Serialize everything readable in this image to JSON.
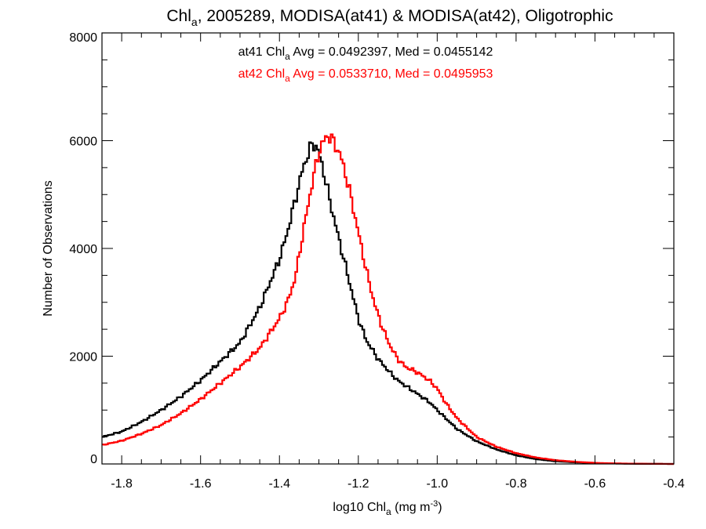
{
  "chart_data": {
    "type": "line",
    "title": {
      "pre": "Chl",
      "sub": "a",
      "post": ", 2005289, MODISA(at41) & MODISA(at42), Oligotrophic"
    },
    "xlabel": {
      "pre": "log10 Chl",
      "sub": "a",
      "mid": " (mg m",
      "sup": "-3",
      "post": ")"
    },
    "ylabel": "Number of Observations",
    "xlim": [
      -1.85,
      -0.4
    ],
    "ylim": [
      0,
      8000
    ],
    "x_ticks": [
      {
        "value": -1.8,
        "label": "-1.8"
      },
      {
        "value": -1.6,
        "label": "-1.6"
      },
      {
        "value": -1.4,
        "label": "-1.4"
      },
      {
        "value": -1.2,
        "label": "-1.2"
      },
      {
        "value": -1.0,
        "label": "-1.0"
      },
      {
        "value": -0.8,
        "label": "-0.8"
      },
      {
        "value": -0.6,
        "label": "-0.6"
      },
      {
        "value": -0.4,
        "label": "-0.4"
      }
    ],
    "y_ticks": [
      {
        "value": 0,
        "label": "0"
      },
      {
        "value": 2000,
        "label": "2000"
      },
      {
        "value": 4000,
        "label": "4000"
      },
      {
        "value": 6000,
        "label": "6000"
      },
      {
        "value": 8000,
        "label": "8000"
      }
    ],
    "grid": false,
    "step": 0.005,
    "annotations": [
      {
        "color": "#000000",
        "pre": "at41 Chl",
        "sub": "a",
        "post": " Avg = 0.0492397, Med = 0.0455142"
      },
      {
        "color": "#ff0000",
        "pre": "at42 Chl",
        "sub": "a",
        "post": " Avg = 0.0533710, Med = 0.0495953"
      }
    ],
    "series": [
      {
        "color": "#000000",
        "x": [
          -1.85,
          -1.8,
          -1.75,
          -1.7,
          -1.65,
          -1.6,
          -1.55,
          -1.5,
          -1.45,
          -1.4,
          -1.38,
          -1.36,
          -1.34,
          -1.32,
          -1.31,
          -1.3,
          -1.29,
          -1.28,
          -1.26,
          -1.24,
          -1.22,
          -1.2,
          -1.18,
          -1.15,
          -1.12,
          -1.1,
          -1.08,
          -1.05,
          -1.02,
          -1.0,
          -0.95,
          -0.9,
          -0.85,
          -0.8,
          -0.75,
          -0.7,
          -0.65,
          -0.6,
          -0.55,
          -0.5,
          -0.45,
          -0.4
        ],
        "y": [
          500,
          600,
          780,
          1000,
          1250,
          1550,
          1900,
          2250,
          2900,
          3800,
          4300,
          4900,
          5500,
          5900,
          5950,
          5750,
          5500,
          5150,
          4500,
          3900,
          3300,
          2700,
          2300,
          1950,
          1700,
          1550,
          1450,
          1300,
          1150,
          1000,
          650,
          420,
          270,
          160,
          90,
          50,
          30,
          15,
          8,
          4,
          2,
          0
        ]
      },
      {
        "color": "#ff0000",
        "x": [
          -1.85,
          -1.8,
          -1.75,
          -1.7,
          -1.65,
          -1.6,
          -1.55,
          -1.5,
          -1.45,
          -1.4,
          -1.38,
          -1.36,
          -1.34,
          -1.32,
          -1.3,
          -1.29,
          -1.28,
          -1.27,
          -1.26,
          -1.25,
          -1.24,
          -1.22,
          -1.2,
          -1.18,
          -1.16,
          -1.14,
          -1.12,
          -1.1,
          -1.08,
          -1.05,
          -1.02,
          -1.0,
          -0.98,
          -0.95,
          -0.9,
          -0.85,
          -0.8,
          -0.75,
          -0.7,
          -0.65,
          -0.6,
          -0.55,
          -0.5,
          -0.45,
          -0.4
        ],
        "y": [
          350,
          430,
          560,
          720,
          940,
          1200,
          1500,
          1800,
          2150,
          2700,
          3000,
          3450,
          4300,
          5100,
          5800,
          5950,
          6100,
          6050,
          5950,
          5800,
          5600,
          5000,
          4300,
          3600,
          3000,
          2550,
          2200,
          1950,
          1800,
          1700,
          1550,
          1400,
          1150,
          850,
          500,
          320,
          200,
          120,
          70,
          40,
          20,
          10,
          5,
          2,
          0
        ]
      }
    ]
  }
}
